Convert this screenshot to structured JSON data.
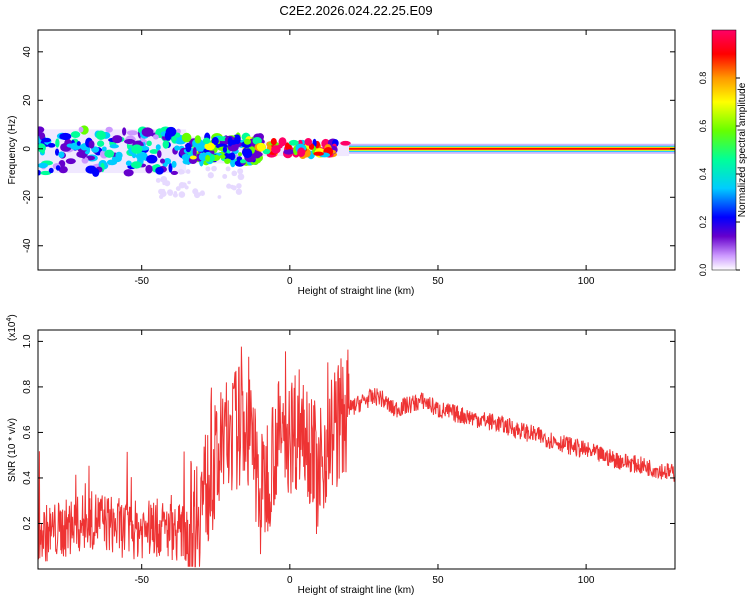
{
  "title": "C2E2.2026.024.22.25.E09",
  "chart_data": [
    {
      "type": "heatmap",
      "xlabel": "Height of straight line (km)",
      "ylabel": "Frequency (Hz)",
      "xlim": [
        -85,
        130
      ],
      "ylim": [
        -50,
        49
      ],
      "xticks": [
        -50,
        0,
        50,
        100
      ],
      "yticks": [
        -40,
        -20,
        0,
        20,
        40
      ],
      "colorbar": {
        "label": "Normalized spectral amplitude",
        "range": [
          0,
          1
        ],
        "ticks": [
          "0.0",
          "0.2",
          "0.4",
          "0.6",
          "0.8"
        ],
        "colormap": [
          "#ffffff",
          "#cc99ff",
          "#6600cc",
          "#0000ff",
          "#00ccff",
          "#00ff99",
          "#66ff00",
          "#ffff00",
          "#ff9900",
          "#ff0000",
          "#ff0066"
        ]
      },
      "description_bands": [
        {
          "x": [
            -85,
            -35
          ],
          "freq_spread": [
            -10,
            8
          ],
          "amplitude": 0.35
        },
        {
          "x": [
            -35,
            -10
          ],
          "freq_spread": [
            -6,
            5
          ],
          "amplitude": 0.45
        },
        {
          "x": [
            -10,
            20
          ],
          "freq_spread": [
            -3,
            3
          ],
          "amplitude": 0.7
        },
        {
          "x": [
            20,
            130
          ],
          "freq_spread": [
            -1.5,
            1.5
          ],
          "amplitude": 0.9
        }
      ]
    },
    {
      "type": "line",
      "xlabel": "Height of straight line (km)",
      "ylabel": "SNR (10 * v/v)",
      "yscale_label": "(x10",
      "yscale_exp": "4",
      "xlim": [
        -85,
        130
      ],
      "ylim": [
        0,
        1.05
      ],
      "xticks": [
        -50,
        0,
        50,
        100
      ],
      "yticks": [
        0.2,
        0.4,
        0.6,
        0.8,
        1.0
      ],
      "ytick_labels": [
        "0.2",
        "0.4",
        "0.6",
        "0.8",
        "1.0"
      ],
      "color": "#ee3333",
      "series": [
        {
          "x": [
            -85,
            -75,
            -65,
            -55,
            -45,
            -35,
            -30,
            -25,
            -20,
            -15,
            -12,
            -10,
            -5,
            0,
            5,
            8,
            10,
            12,
            15,
            20,
            25,
            30,
            35,
            40,
            45,
            50,
            60,
            70,
            80,
            90,
            100,
            110,
            120,
            130
          ],
          "values": [
            0.15,
            0.18,
            0.22,
            0.17,
            0.18,
            0.16,
            0.3,
            0.45,
            0.6,
            0.65,
            0.5,
            0.3,
            0.55,
            0.6,
            0.65,
            0.5,
            0.35,
            0.55,
            0.62,
            0.7,
            0.74,
            0.76,
            0.7,
            0.72,
            0.74,
            0.7,
            0.67,
            0.64,
            0.6,
            0.56,
            0.52,
            0.48,
            0.45,
            0.42
          ]
        }
      ]
    }
  ]
}
